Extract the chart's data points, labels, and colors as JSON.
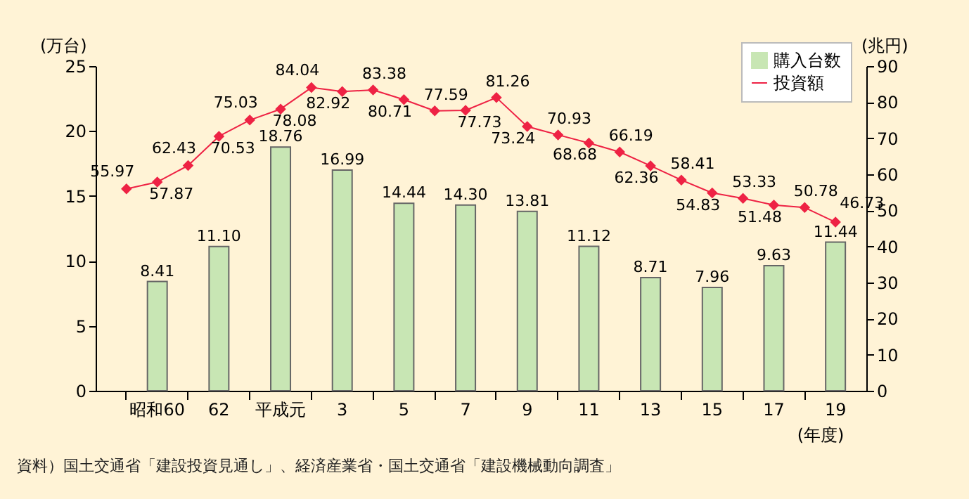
{
  "chart_data": {
    "type": "bar",
    "xlabel": "(年度)",
    "ylabel": "(万台)",
    "y2label": "(兆円)",
    "categories": [
      null,
      "昭和60",
      null,
      "62",
      null,
      "平成元",
      null,
      "3",
      null,
      "5",
      null,
      "7",
      null,
      "9",
      null,
      "11",
      null,
      "13",
      null,
      "15",
      null,
      "17",
      null,
      "19"
    ],
    "ylim": [
      0,
      25
    ],
    "yticks": [
      0,
      5,
      10,
      15,
      20,
      25
    ],
    "y2lim": [
      0,
      90
    ],
    "y2ticks": [
      0,
      10,
      20,
      30,
      40,
      50,
      60,
      70,
      80,
      90
    ],
    "series": [
      {
        "name": "購入台数",
        "color": "#c8e6b4",
        "values": [
          null,
          8.41,
          null,
          11.1,
          null,
          18.76,
          null,
          16.99,
          null,
          14.44,
          null,
          14.3,
          null,
          13.81,
          null,
          11.12,
          null,
          8.71,
          null,
          7.96,
          null,
          9.63,
          null,
          11.44
        ],
        "value_labels": [
          null,
          "8.41",
          null,
          "11.10",
          null,
          "18.76",
          null,
          "16.99",
          null,
          "14.44",
          null,
          "14.30",
          null,
          "13.81",
          null,
          "11.12",
          null,
          "8.71",
          null,
          "7.96",
          null,
          "9.63",
          null,
          "11.44"
        ]
      },
      {
        "name": "投資額",
        "type": "line",
        "axis": "y2",
        "color": "#ee2244",
        "marker": "diamond",
        "values": [
          55.97,
          57.87,
          62.43,
          70.53,
          75.03,
          78.08,
          84.04,
          82.92,
          83.38,
          80.71,
          77.59,
          77.73,
          81.26,
          73.24,
          70.93,
          68.68,
          66.19,
          62.36,
          58.41,
          54.83,
          53.33,
          51.48,
          50.78,
          46.73
        ],
        "value_labels": [
          "55.97",
          "57.87",
          "62.43",
          "70.53",
          "75.03",
          "78.08",
          "84.04",
          "82.92",
          "83.38",
          "80.71",
          "77.59",
          "77.73",
          "81.26",
          "73.24",
          "70.93",
          "68.68",
          "66.19",
          "62.36",
          "58.41",
          "54.83",
          "53.33",
          "51.48",
          "50.78",
          "46.73"
        ]
      }
    ],
    "legend": "top right",
    "annotations": [
      "資料）国土交通省「建設投資見通し」、経済産業省・国土交通省「建設機械動向調査」"
    ]
  }
}
